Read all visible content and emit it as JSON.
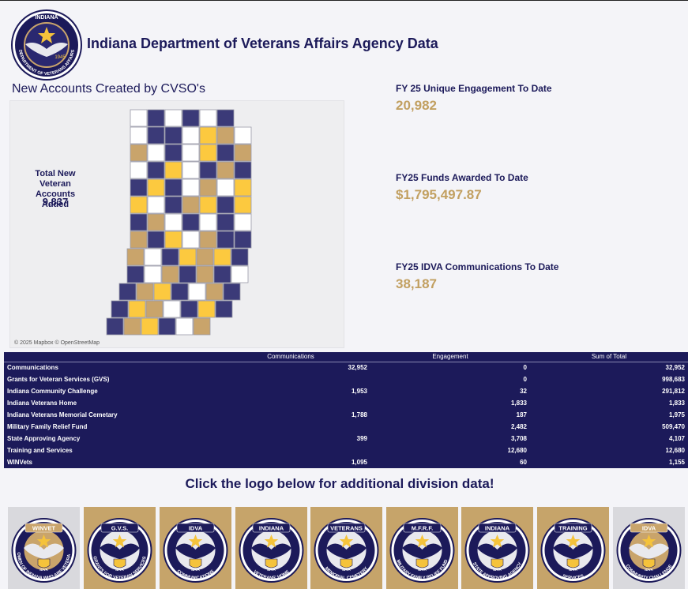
{
  "page": {
    "title": "Indiana Department of Veterans Affairs Agency Data"
  },
  "seal": {
    "top_text": "INDIANA",
    "bottom_text": "DEPARTMENT OF VETERANS AFFAIRS",
    "year": "1945"
  },
  "map": {
    "title": "New Accounts Created by CVSO's",
    "kpi_label": "Total New Veteran Accounts Added",
    "kpi_value": "9,837",
    "attribution": "© 2025 Mapbox © OpenStreetMap",
    "colors": {
      "navy": "#3b3a78",
      "gold": "#fcc93f",
      "tan": "#c9a46b",
      "white": "#ffffff"
    }
  },
  "kpis": [
    {
      "label": "FY 25 Unique Engagement To Date",
      "value": "20,982"
    },
    {
      "label": "FY25 Funds Awarded To Date",
      "value": "$1,795,497.87"
    },
    {
      "label": "FY25 IDVA Communications To Date",
      "value": "38,187"
    }
  ],
  "table": {
    "headers": [
      "",
      "Communications",
      "Engagement",
      "Sum of Total"
    ],
    "rows": [
      [
        "Communications",
        "32,952",
        "0",
        "32,952"
      ],
      [
        "Grants for Veteran Services (GVS)",
        "",
        "0",
        "998,683"
      ],
      [
        "Indiana Community Challenge",
        "1,953",
        "32",
        "291,812"
      ],
      [
        "Indiana Veterans Home",
        "",
        "1,833",
        "1,833"
      ],
      [
        "Indiana Veterans Memorial Cemetary",
        "1,788",
        "187",
        "1,975"
      ],
      [
        "Military Family Relief Fund",
        "",
        "2,482",
        "509,470"
      ],
      [
        "State Approving Agency",
        "399",
        "3,708",
        "4,107"
      ],
      [
        "Training and Services",
        "",
        "12,680",
        "12,680"
      ],
      [
        "WINVets",
        "1,095",
        "60",
        "1,155"
      ]
    ]
  },
  "cta": "Click the logo below for additional division data!",
  "logos": [
    {
      "top": "WINVET",
      "ring": "WOMEN OF INDIANA WHO ARE VETERANS",
      "bg": "#d9d9dd",
      "disc": "#c9a46b"
    },
    {
      "top": "G.V.S.",
      "ring": "GRANTS FOR VETERAN SERVICES",
      "bg": "#c6a46a",
      "disc": "#1c1a5a"
    },
    {
      "top": "IDVA",
      "ring": "COMMUNICATIONS",
      "bg": "#c6a46a",
      "disc": "#1c1a5a"
    },
    {
      "top": "INDIANA",
      "ring": "VETERANS' HOME",
      "bg": "#c6a46a",
      "disc": "#1c1a5a"
    },
    {
      "top": "VETERANS",
      "ring": "MEMORIAL CEMETERY",
      "bg": "#c6a46a",
      "disc": "#1c1a5a"
    },
    {
      "top": "M.F.R.F.",
      "ring": "MILITARY FAMILY RELIEF FUND",
      "bg": "#c6a46a",
      "disc": "#1c1a5a"
    },
    {
      "top": "INDIANA",
      "ring": "STATE APPROVING AGENCY",
      "bg": "#c6a46a",
      "disc": "#1c1a5a"
    },
    {
      "top": "TRAINING",
      "ring": "SERVICES",
      "bg": "#c6a46a",
      "disc": "#1c1a5a"
    },
    {
      "top": "IDVA",
      "ring": "COMMUNITY CHALLENGE",
      "bg": "#d9d9dd",
      "disc": "#c9a46b"
    }
  ],
  "logo_shared": {
    "inner": "IDVA",
    "est": "EST. 1945"
  }
}
